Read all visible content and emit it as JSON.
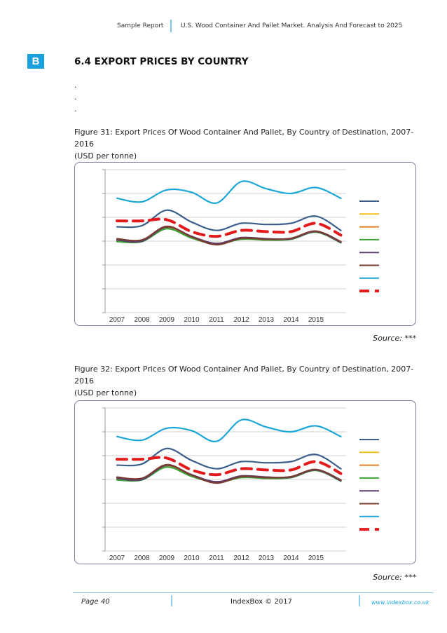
{
  "header": {
    "left": "Sample Report",
    "right": "U.S. Wood Container And Pallet Market. Analysis And Forecast to 2025"
  },
  "logo": "B",
  "section_title": "6.4 EXPORT PRICES BY COUNTRY",
  "dots": [
    ".",
    ".",
    "."
  ],
  "figures": [
    {
      "caption_line1": "Figure 31: Export Prices Of Wood Container And Pallet, By Country of Destination, 2007-",
      "caption_line2": "2016",
      "unit": "(USD per tonne)",
      "source": "Source: ***"
    },
    {
      "caption_line1": "Figure 32: Export Prices Of Wood Container And Pallet, By Country of Destination, 2007-",
      "caption_line2": "2016",
      "unit": "(USD per tonne)",
      "source": "Source: ***"
    }
  ],
  "chart_data": {
    "type": "line",
    "x": [
      "2007",
      "2008",
      "2009",
      "2010",
      "2011",
      "2012",
      "2013",
      "2014",
      "2015",
      "2016"
    ],
    "x_tick_labels": [
      "2007",
      "2008",
      "2009",
      "2010",
      "2011",
      "2012",
      "2013",
      "2014",
      "2015"
    ],
    "ylim": [
      0,
      6
    ],
    "grid": true,
    "legend": "right",
    "series": [
      {
        "name": "",
        "color": "#1aa6d6",
        "style": "solid",
        "values": [
          4.8,
          4.65,
          5.15,
          5.05,
          4.6,
          5.5,
          5.2,
          5.0,
          5.25,
          4.8
        ]
      },
      {
        "name": "",
        "color": "#3b5f8a",
        "style": "solid",
        "values": [
          3.6,
          3.65,
          4.3,
          3.8,
          3.45,
          3.75,
          3.7,
          3.75,
          4.05,
          3.45
        ]
      },
      {
        "name": "",
        "color": "#e31a1c",
        "style": "dashed",
        "values": [
          3.85,
          3.85,
          3.9,
          3.4,
          3.2,
          3.45,
          3.4,
          3.4,
          3.75,
          3.25
        ]
      },
      {
        "name": "",
        "color": "#f0c020",
        "style": "solid",
        "values": [
          3.0,
          3.0,
          3.55,
          3.15,
          2.9,
          3.1,
          3.05,
          3.1,
          3.4,
          2.95
        ]
      },
      {
        "name": "",
        "color": "#e0802a",
        "style": "solid",
        "values": [
          3.0,
          3.0,
          3.55,
          3.15,
          2.9,
          3.1,
          3.05,
          3.1,
          3.4,
          2.95
        ]
      },
      {
        "name": "",
        "color": "#3ca336",
        "style": "solid",
        "values": [
          2.98,
          2.98,
          3.52,
          3.13,
          2.88,
          3.08,
          3.05,
          3.08,
          3.38,
          2.93
        ]
      },
      {
        "name": "",
        "color": "#5b3f6e",
        "style": "solid",
        "values": [
          3.05,
          3.0,
          3.6,
          3.2,
          2.9,
          3.15,
          3.1,
          3.1,
          3.4,
          2.95
        ]
      },
      {
        "name": "",
        "color": "#7a3b32",
        "style": "solid",
        "values": [
          3.1,
          3.05,
          3.62,
          3.18,
          2.85,
          3.12,
          3.08,
          3.12,
          3.42,
          2.98
        ]
      }
    ],
    "legend_colors": [
      "#3b5f8a",
      "#f0c020",
      "#e0802a",
      "#3ca336",
      "#5b3f6e",
      "#7a3b32",
      "#1aa6d6",
      "#e31a1c"
    ],
    "legend_dashed_index": 7
  },
  "footer": {
    "page": "Page 40",
    "center": "IndexBox © 2017",
    "url": "www.indexbox.co.uk"
  }
}
